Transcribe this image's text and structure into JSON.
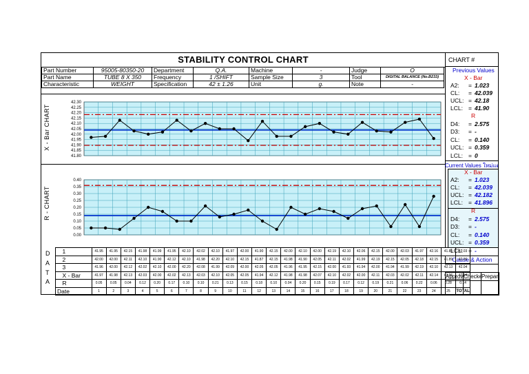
{
  "title": "STABILITY  CONTROL CHART",
  "chart_number_label": "CHART #",
  "info": {
    "part_number_label": "Part Number",
    "part_number": "95005-80350-20",
    "department_label": "Department",
    "department": "Q.A.",
    "machine_label": "Machine",
    "machine": "-",
    "judge_label": "Judge",
    "judge": "O",
    "part_name_label": "Part Name",
    "part_name": "TUBE 8 X 350",
    "frequency_label": "Frequency",
    "frequency": "1 /SHIFT",
    "sample_size_label": "Sample Size",
    "sample_size": "3",
    "tool_label": "Tool",
    "tool": "DIGITAL BALANCE (No.B233)",
    "characteristic_label": "Characteristic",
    "characteristic": "WEIGHT",
    "specification_label": "Specification",
    "specification": "42 ± 1.26",
    "unit_label": "Unit",
    "unit": "g.",
    "note_label": "Note",
    "note": "-"
  },
  "previous": {
    "header": "Previous Values",
    "xbar_header": "X - Bar",
    "a2_label": "A2:",
    "a2": "1.023",
    "cl_label": "CL:",
    "cl": "42.039",
    "ucl_label": "UCL:",
    "ucl": "42.18",
    "lcl_label": "LCL:",
    "lcl": "41.90",
    "r_header": "R",
    "d4_label": "D4:",
    "d4": "2.575",
    "d3_label": "D3:",
    "d3": "-",
    "rcl_label": "CL:",
    "rcl": "0.140",
    "rucl_label": "UCL:",
    "rucl": "0.359",
    "rlcl_label": "LCL:",
    "rlcl": "0"
  },
  "current": {
    "header": "Current Values ใหม่แต",
    "xbar_header": "X - Bar",
    "a2_label": "A2:",
    "a2": "1.023",
    "cl_label": "CL:",
    "cl": "42.039",
    "ucl_label": "UCL:",
    "ucl": "42.182",
    "lcl_label": "LCL:",
    "lcl": "41.896",
    "r_header": "R",
    "d4_label": "D4:",
    "d4": "2.575",
    "d3_label": "D3:",
    "d3": "-",
    "rcl_label": "CL:",
    "rcl": "0.140",
    "rucl_label": "UCL:",
    "rucl": "0.359",
    "rlcl_label": "LCL:",
    "rlcl": "-"
  },
  "cause_action": "Cause & Action",
  "signoff": [
    "Approved",
    "Checked",
    "Prepared"
  ],
  "eq": "=",
  "xchart_label": "X - Bar  CHART",
  "rchart_label": "R - CHART",
  "data_letters": [
    "D",
    "A",
    "T",
    "A"
  ],
  "row_labels": [
    "1",
    "2",
    "3",
    "X - Bar",
    "R",
    "Date"
  ],
  "total_label": "TOTAL",
  "table": {
    "r1": [
      "41.95",
      "41.95",
      "42.15",
      "41.98",
      "41.99",
      "41.95",
      "42.10",
      "42.02",
      "42.10",
      "41.97",
      "42.00",
      "41.90",
      "42.15",
      "42.00",
      "42.10",
      "42.00",
      "42.19",
      "42.10",
      "42.06",
      "42.15",
      "42.00",
      "42.03",
      "41.97",
      "42.16",
      "41.85",
      "42.03"
    ],
    "r2": [
      "42.00",
      "42.00",
      "42.11",
      "42.10",
      "41.90",
      "42.12",
      "42.10",
      "41.98",
      "42.20",
      "42.10",
      "42.15",
      "41.87",
      "42.15",
      "41.98",
      "41.90",
      "42.05",
      "42.11",
      "42.02",
      "41.99",
      "42.19",
      "42.15",
      "42.05",
      "42.18",
      "42.15",
      "41.89",
      "42.06"
    ],
    "r3": [
      "41.96",
      "42.00",
      "42.12",
      "42.02",
      "42.10",
      "42.00",
      "42.20",
      "42.08",
      "41.99",
      "42.09",
      "42.00",
      "42.05",
      "42.05",
      "41.96",
      "41.95",
      "42.15",
      "42.00",
      "41.93",
      "41.94",
      "42.00",
      "41.94",
      "41.99",
      "42.19",
      "42.10",
      "42.13",
      "42.04"
    ],
    "xbar": [
      "41.97",
      "41.98",
      "42.13",
      "42.03",
      "42.00",
      "42.02",
      "42.13",
      "42.03",
      "42.10",
      "42.05",
      "42.05",
      "41.94",
      "42.12",
      "41.98",
      "41.98",
      "42.07",
      "42.10",
      "42.02",
      "42.00",
      "42.11",
      "42.03",
      "42.02",
      "42.11",
      "42.14",
      "41.96",
      "42.04"
    ],
    "r": [
      "0.05",
      "0.05",
      "0.04",
      "0.12",
      "0.20",
      "0.17",
      "0.10",
      "0.10",
      "0.21",
      "0.13",
      "0.15",
      "0.18",
      "0.10",
      "0.04",
      "0.20",
      "0.15",
      "0.19",
      "0.17",
      "0.12",
      "0.19",
      "0.21",
      "0.06",
      "0.22",
      "0.06",
      "0.28",
      "0.14"
    ],
    "date": [
      "1",
      "2",
      "3",
      "4",
      "5",
      "6",
      "7",
      "8",
      "9",
      "10",
      "11",
      "12",
      "13",
      "14",
      "15",
      "16",
      "17",
      "18",
      "19",
      "20",
      "21",
      "22",
      "23",
      "24",
      "25"
    ]
  },
  "chart_data": [
    {
      "type": "line",
      "title": "",
      "xlabel": "",
      "ylabel": "X - Bar  CHART",
      "ylim": [
        41.8,
        42.3
      ],
      "yticks": [
        "42.30",
        "42.25",
        "42.20",
        "42.15",
        "42.10",
        "42.05",
        "42.00",
        "41.95",
        "41.90",
        "41.85",
        "41.80"
      ],
      "x": [
        1,
        2,
        3,
        4,
        5,
        6,
        7,
        8,
        9,
        10,
        11,
        12,
        13,
        14,
        15,
        16,
        17,
        18,
        19,
        20,
        21,
        22,
        23,
        24,
        25
      ],
      "values": [
        41.97,
        41.98,
        42.13,
        42.03,
        42.0,
        42.02,
        42.13,
        42.03,
        42.1,
        42.05,
        42.05,
        41.94,
        42.12,
        41.98,
        41.98,
        42.07,
        42.1,
        42.02,
        42.0,
        42.11,
        42.03,
        42.02,
        42.11,
        42.14,
        41.96
      ],
      "cl": 42.039,
      "ucl": 42.182,
      "lcl": 41.896,
      "grid": true,
      "colors": {
        "line": "#000000",
        "cl": "#0033cc",
        "limits": "#cc0000",
        "plot_bg": "#c8f0f8",
        "grid": "#3aa0b8"
      }
    },
    {
      "type": "line",
      "title": "",
      "xlabel": "",
      "ylabel": "R - CHART",
      "ylim": [
        0,
        0.4
      ],
      "yticks": [
        "0.40",
        "0.35",
        "0.30",
        "0.25",
        "0.20",
        "0.15",
        "0.10",
        "0.05",
        "0.00"
      ],
      "x": [
        1,
        2,
        3,
        4,
        5,
        6,
        7,
        8,
        9,
        10,
        11,
        12,
        13,
        14,
        15,
        16,
        17,
        18,
        19,
        20,
        21,
        22,
        23,
        24,
        25
      ],
      "values": [
        0.05,
        0.05,
        0.04,
        0.12,
        0.2,
        0.17,
        0.1,
        0.1,
        0.21,
        0.13,
        0.15,
        0.18,
        0.1,
        0.04,
        0.2,
        0.15,
        0.19,
        0.17,
        0.12,
        0.19,
        0.21,
        0.06,
        0.22,
        0.06,
        0.28
      ],
      "cl": 0.14,
      "ucl": 0.359,
      "lcl": 0,
      "grid": true,
      "colors": {
        "line": "#000000",
        "cl": "#0033cc",
        "limits": "#cc0000",
        "plot_bg": "#c8f0f8",
        "grid": "#3aa0b8"
      }
    }
  ]
}
